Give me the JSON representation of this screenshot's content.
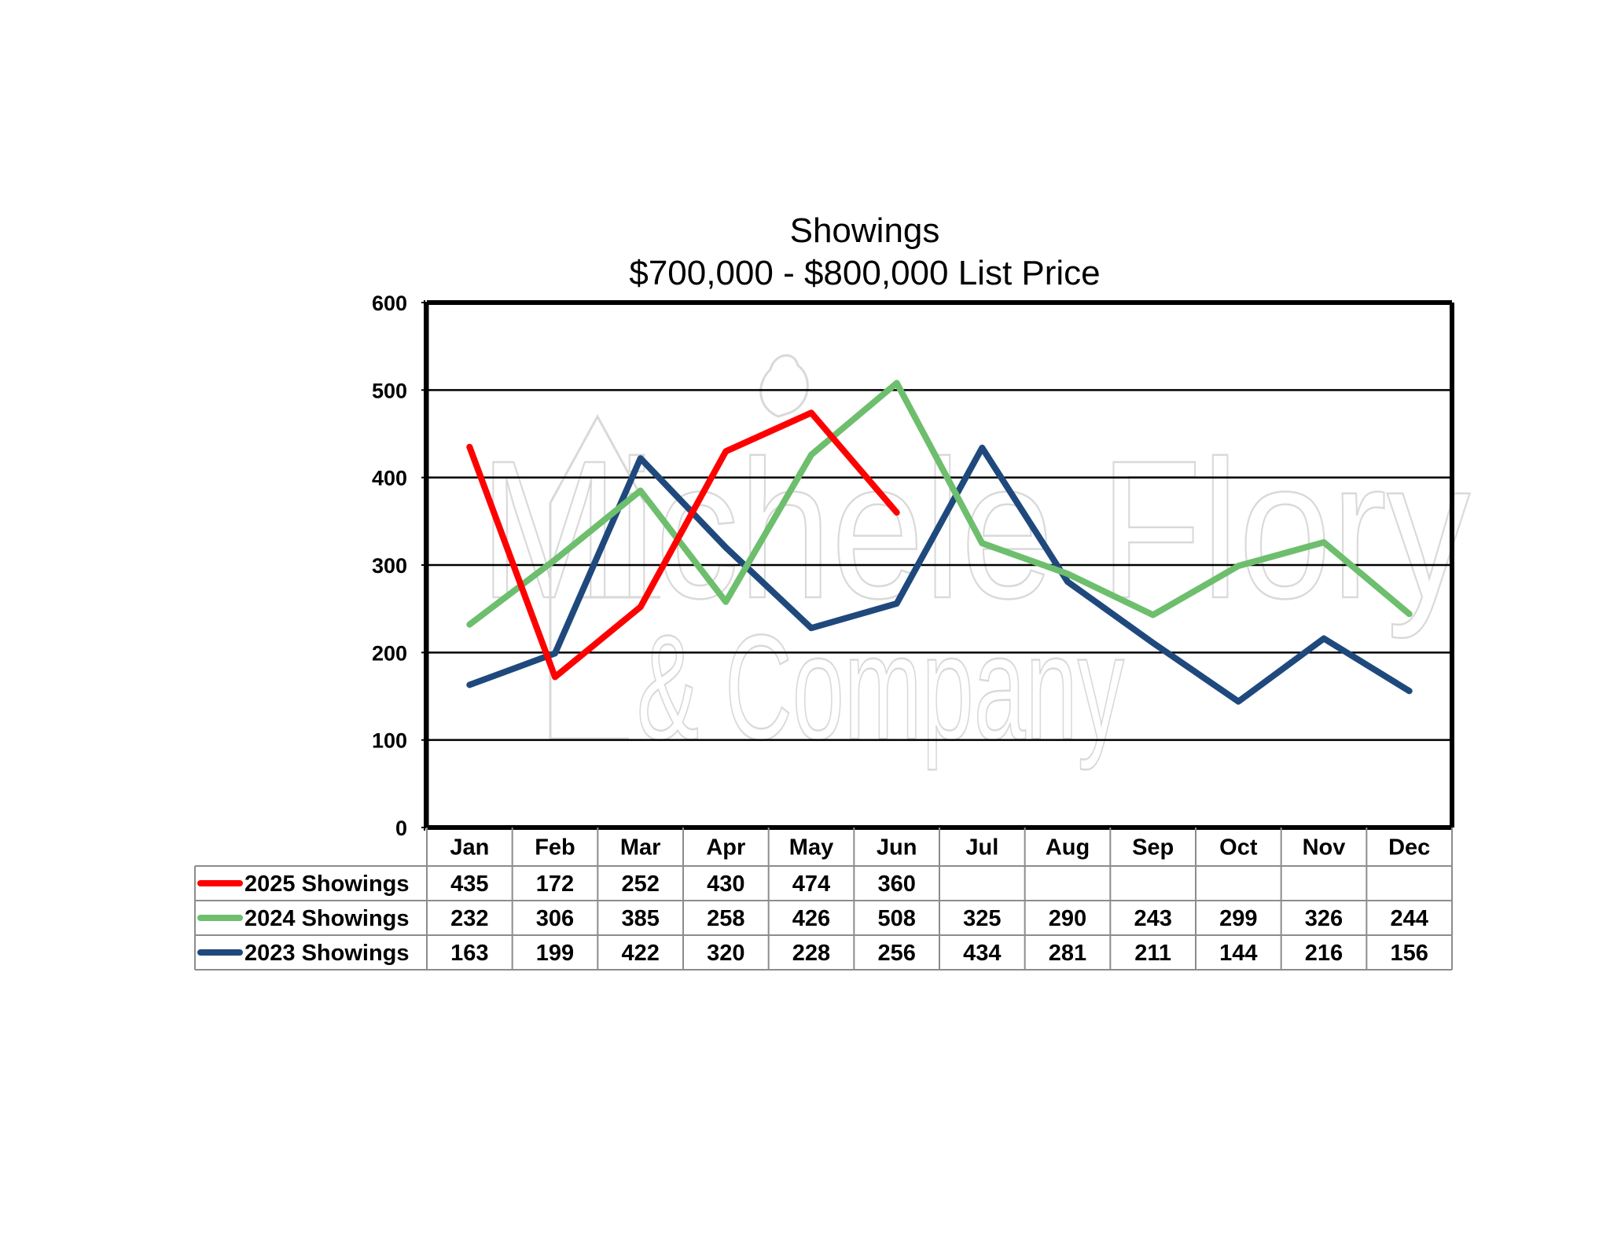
{
  "chart_data": {
    "type": "line",
    "title": "Showings",
    "subtitle": "$700,000 - $800,000 List Price",
    "categories": [
      "Jan",
      "Feb",
      "Mar",
      "Apr",
      "May",
      "Jun",
      "Jul",
      "Aug",
      "Sep",
      "Oct",
      "Nov",
      "Dec"
    ],
    "ylim": [
      0,
      600
    ],
    "yticks": [
      0,
      100,
      200,
      300,
      400,
      500,
      600
    ],
    "grid": true,
    "legend": "data-table-below",
    "series": [
      {
        "name": "2025 Showings",
        "color": "#ff0000",
        "values": [
          435,
          172,
          252,
          430,
          474,
          360,
          null,
          null,
          null,
          null,
          null,
          null
        ]
      },
      {
        "name": "2024 Showings",
        "color": "#6dbe6d",
        "values": [
          232,
          306,
          385,
          258,
          426,
          508,
          325,
          290,
          243,
          299,
          326,
          244
        ]
      },
      {
        "name": "2023 Showings",
        "color": "#1f497d",
        "values": [
          163,
          199,
          422,
          320,
          228,
          256,
          434,
          281,
          211,
          144,
          216,
          156
        ]
      }
    ]
  },
  "watermark": {
    "line1": "Michele Flory",
    "line2": "& Company"
  }
}
